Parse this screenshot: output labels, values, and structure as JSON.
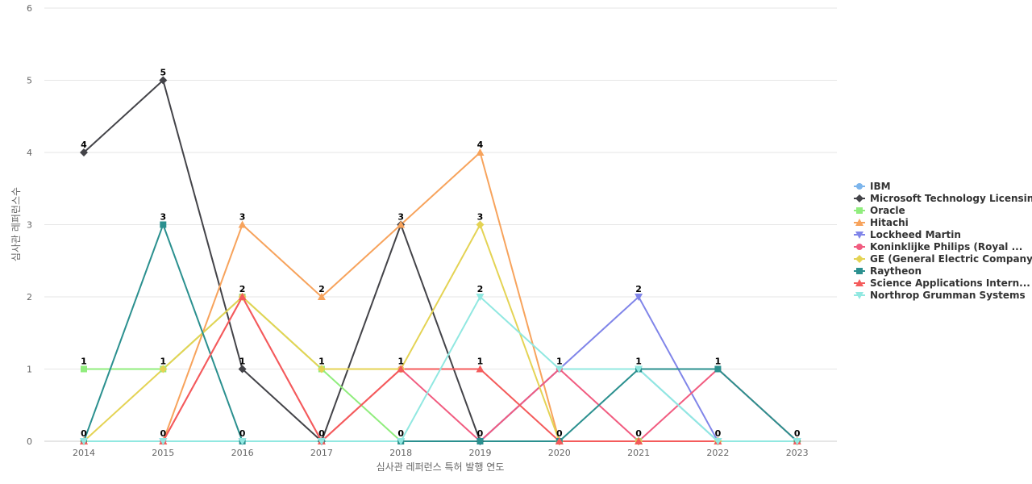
{
  "chart_data": {
    "type": "line",
    "xlabel": "심사관 레퍼런스 특허 발행 연도",
    "ylabel": "심사관 레퍼런스수",
    "x": [
      "2014",
      "2015",
      "2016",
      "2017",
      "2018",
      "2019",
      "2020",
      "2021",
      "2022",
      "2023"
    ],
    "ylim": [
      0,
      6
    ],
    "yticks": [
      0,
      1,
      2,
      3,
      4,
      5,
      6
    ],
    "grid": true,
    "legend_position": "right",
    "series": [
      {
        "name": "IBM",
        "color": "#7cb5ec",
        "marker": "circle",
        "values": [
          0,
          0,
          0,
          0,
          0,
          0,
          1,
          1,
          0,
          0
        ]
      },
      {
        "name": "Microsoft Technology Licensing",
        "color": "#434348",
        "marker": "diamond",
        "values": [
          4,
          5,
          1,
          0,
          3,
          0,
          0,
          0,
          0,
          0
        ]
      },
      {
        "name": "Oracle",
        "color": "#90ed7d",
        "marker": "square",
        "values": [
          1,
          1,
          2,
          1,
          0,
          0,
          0,
          0,
          0,
          0
        ]
      },
      {
        "name": "Hitachi",
        "color": "#f7a35c",
        "marker": "triangle",
        "values": [
          0,
          0,
          3,
          2,
          3,
          4,
          0,
          0,
          0,
          0
        ]
      },
      {
        "name": "Lockheed Martin",
        "color": "#8085e9",
        "marker": "triangle-down",
        "values": [
          0,
          0,
          0,
          0,
          0,
          0,
          1,
          2,
          0,
          0
        ]
      },
      {
        "name": "Koninklijke Philips (Royal ...",
        "color": "#f15c80",
        "marker": "circle",
        "values": [
          0,
          0,
          2,
          0,
          1,
          0,
          1,
          0,
          1,
          0
        ]
      },
      {
        "name": "GE (General Electric Company)",
        "color": "#e4d354",
        "marker": "diamond",
        "values": [
          0,
          1,
          2,
          1,
          1,
          3,
          0,
          0,
          0,
          0
        ]
      },
      {
        "name": "Raytheon",
        "color": "#2b908f",
        "marker": "square",
        "values": [
          0,
          3,
          0,
          0,
          0,
          0,
          0,
          1,
          1,
          0
        ]
      },
      {
        "name": "Science Applications Intern...",
        "color": "#f45b5b",
        "marker": "triangle",
        "values": [
          0,
          0,
          2,
          0,
          1,
          1,
          0,
          0,
          0,
          0
        ]
      },
      {
        "name": "Northrop Grumman Systems",
        "color": "#91e8e1",
        "marker": "triangle-down",
        "values": [
          0,
          0,
          0,
          0,
          0,
          2,
          1,
          1,
          0,
          0
        ]
      }
    ],
    "data_labels": [
      4,
      5,
      1,
      0,
      3,
      4,
      1,
      2,
      1,
      0
    ],
    "data_labels_first_row": [
      0,
      0,
      0,
      0,
      1,
      0,
      0,
      0,
      0,
      0
    ],
    "extra_labels": [
      {
        "x": "2014",
        "value": 1
      },
      {
        "x": "2015",
        "value": 3
      },
      {
        "x": "2015",
        "value": 1
      },
      {
        "x": "2016",
        "value": 3
      },
      {
        "x": "2016",
        "value": 2
      },
      {
        "x": "2017",
        "value": 2
      },
      {
        "x": "2017",
        "value": 1
      },
      {
        "x": "2018",
        "value": 1
      },
      {
        "x": "2019",
        "value": 3
      },
      {
        "x": "2019",
        "value": 2
      },
      {
        "x": "2019",
        "value": 1
      },
      {
        "x": "2020",
        "value": 0
      },
      {
        "x": "2021",
        "value": 1
      },
      {
        "x": "2021",
        "value": 0
      },
      {
        "x": "2022",
        "value": 0
      },
      {
        "x": "2023",
        "value": 0
      }
    ]
  }
}
